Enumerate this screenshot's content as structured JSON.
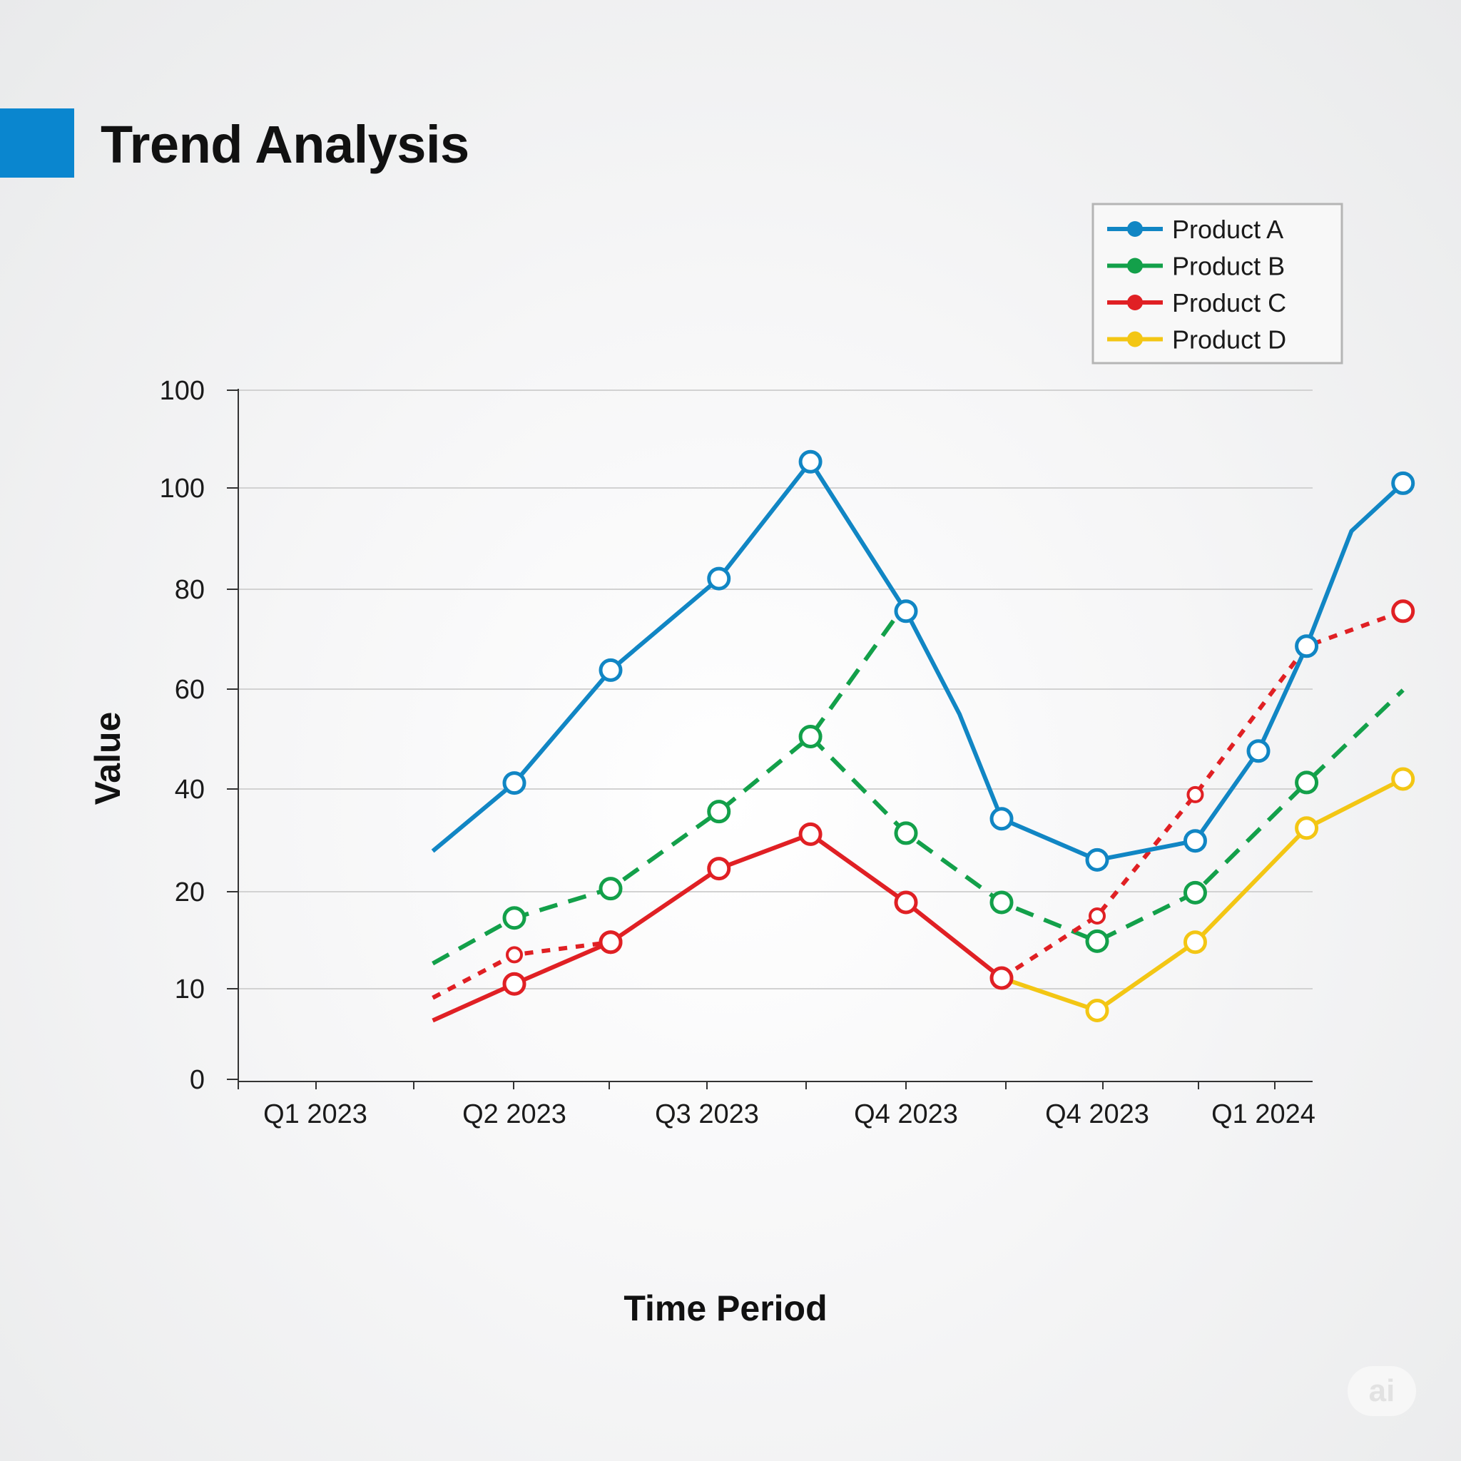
{
  "header": {
    "title": "Trend Analysis",
    "accent_color": "#0a86cf"
  },
  "watermark": {
    "text": "ai"
  },
  "chart_data": {
    "type": "line",
    "title": "Trend Analysis",
    "xlabel": "Time Period",
    "ylabel": "Value",
    "x_tick_labels": [
      "Q1 2023",
      "Q2 2023",
      "Q3 2023",
      "Q4 2023",
      "Q4 2023",
      "Q1 2024"
    ],
    "y_tick_labels": [
      "0",
      "10",
      "20",
      "40",
      "60",
      "80",
      "100",
      "100"
    ],
    "y_scale": "nonlinear (tick labels 0, 10, 20, 40, 60, 80, 100, 100 at equal spacing)",
    "ylim": [
      0,
      100
    ],
    "grid": true,
    "legend_position": "top-right",
    "series": [
      {
        "name": "Product A",
        "color": "#1186c4",
        "style": "solid",
        "points": [
          {
            "x": 0.59,
            "y": 27.9,
            "marker": false
          },
          {
            "x": 1.0,
            "y": 41.2,
            "marker": true
          },
          {
            "x": 1.5,
            "y": 63.8,
            "marker": true
          },
          {
            "x": 2.06,
            "y": 82.1,
            "marker": true
          },
          {
            "x": 2.52,
            "y": 106.7,
            "marker": true
          },
          {
            "x": 3.0,
            "y": 75.6,
            "marker": true
          },
          {
            "x": 3.28,
            "y": 55.0,
            "marker": false
          },
          {
            "x": 3.5,
            "y": 34.2,
            "marker": true
          },
          {
            "x": 4.0,
            "y": 26.2,
            "marker": true
          },
          {
            "x": 4.59,
            "y": 29.9,
            "marker": true
          },
          {
            "x": 4.97,
            "y": 47.6,
            "marker": true
          },
          {
            "x": 5.26,
            "y": 68.6,
            "marker": true
          },
          {
            "x": 5.53,
            "y": 91.5,
            "marker": false
          },
          {
            "x": 5.84,
            "y": 101.2,
            "marker": true
          }
        ]
      },
      {
        "name": "Product B",
        "color": "#13a04a",
        "style": "dashed",
        "segments": [
          [
            {
              "x": 0.59,
              "y": 12.6,
              "marker": false
            },
            {
              "x": 1.0,
              "y": 17.3,
              "marker": true
            },
            {
              "x": 1.5,
              "y": 20.6,
              "marker": true
            },
            {
              "x": 2.06,
              "y": 35.6,
              "marker": true
            },
            {
              "x": 2.52,
              "y": 50.5,
              "marker": true
            },
            {
              "x": 2.96,
              "y": 75.0,
              "marker": false
            }
          ],
          [
            {
              "x": 2.52,
              "y": 50.5,
              "marker": false
            },
            {
              "x": 3.0,
              "y": 31.4,
              "marker": true
            },
            {
              "x": 3.5,
              "y": 18.9,
              "marker": true
            },
            {
              "x": 4.0,
              "y": 14.9,
              "marker": true
            },
            {
              "x": 4.59,
              "y": 19.9,
              "marker": true
            },
            {
              "x": 5.26,
              "y": 41.3,
              "marker": true
            },
            {
              "x": 5.84,
              "y": 59.8,
              "marker": false
            }
          ]
        ]
      },
      {
        "name": "Product C",
        "color": "#e02024",
        "style": "mixed",
        "segments": [
          {
            "style": "dotted",
            "points": [
              {
                "x": 0.59,
                "y": 9.0,
                "marker": false
              },
              {
                "x": 1.0,
                "y": 13.5,
                "marker": "small"
              },
              {
                "x": 1.5,
                "y": 14.8,
                "marker": true
              }
            ]
          },
          {
            "style": "solid",
            "points": [
              {
                "x": 0.59,
                "y": 6.5,
                "marker": false
              },
              {
                "x": 1.0,
                "y": 10.5,
                "marker": true
              },
              {
                "x": 1.5,
                "y": 14.8,
                "marker": true
              },
              {
                "x": 2.06,
                "y": 24.5,
                "marker": true
              },
              {
                "x": 2.52,
                "y": 31.2,
                "marker": true
              },
              {
                "x": 3.0,
                "y": 18.9,
                "marker": true
              },
              {
                "x": 3.5,
                "y": 11.1,
                "marker": true
              }
            ]
          },
          {
            "style": "dotted",
            "points": [
              {
                "x": 3.5,
                "y": 11.1,
                "marker": false
              },
              {
                "x": 4.0,
                "y": 17.5,
                "marker": "small"
              },
              {
                "x": 4.59,
                "y": 38.9,
                "marker": "small"
              },
              {
                "x": 5.26,
                "y": 68.6,
                "marker": false
              },
              {
                "x": 5.84,
                "y": 75.6,
                "marker": true
              }
            ]
          }
        ]
      },
      {
        "name": "Product D",
        "color": "#f3c614",
        "style": "solid",
        "points": [
          {
            "x": 3.5,
            "y": 11.1,
            "marker": false
          },
          {
            "x": 4.0,
            "y": 7.6,
            "marker": true
          },
          {
            "x": 4.59,
            "y": 14.8,
            "marker": true
          },
          {
            "x": 5.26,
            "y": 32.4,
            "marker": true
          },
          {
            "x": 5.84,
            "y": 42.0,
            "marker": true
          }
        ]
      }
    ]
  }
}
